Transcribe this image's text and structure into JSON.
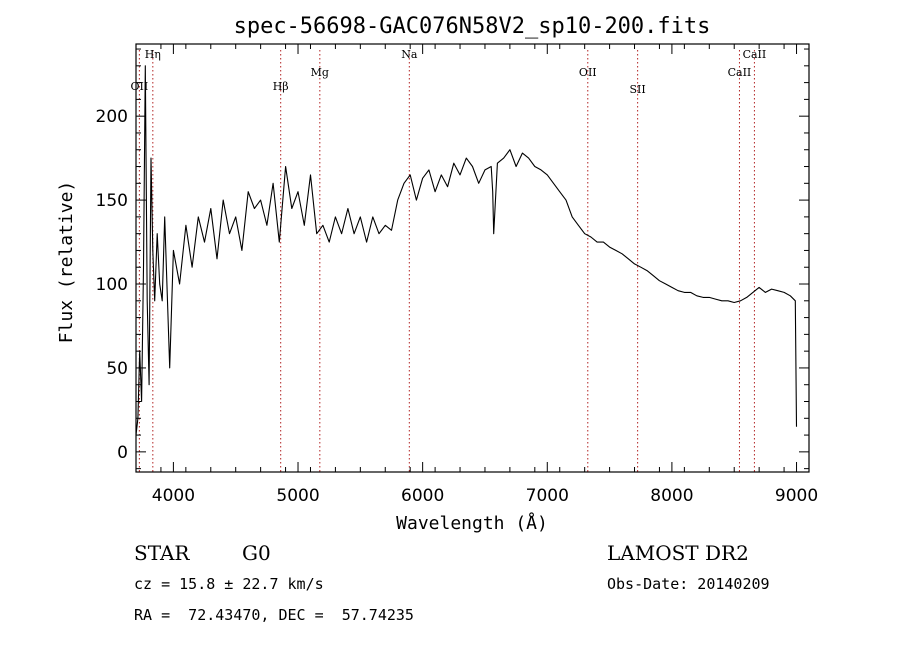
{
  "chart_data": {
    "type": "line",
    "title": "spec-56698-GAC076N58V2_sp10-200.fits",
    "xlabel": "Wavelength (Å)",
    "ylabel": "Flux (relative)",
    "xlim": [
      3700,
      9100
    ],
    "ylim": [
      -12,
      243
    ],
    "xticks": [
      4000,
      5000,
      6000,
      7000,
      8000,
      9000
    ],
    "yticks": [
      0,
      50,
      100,
      150,
      200
    ],
    "line_color": "#000000",
    "series": [
      {
        "x": [
          3700,
          3715,
          3730,
          3745,
          3760,
          3775,
          3790,
          3805,
          3820,
          3835,
          3850,
          3870,
          3890,
          3910,
          3930,
          3950,
          3970,
          4000,
          4050,
          4100,
          4150,
          4200,
          4250,
          4300,
          4350,
          4400,
          4450,
          4500,
          4550,
          4600,
          4650,
          4700,
          4750,
          4800,
          4850,
          4900,
          4950,
          5000,
          5050,
          5100,
          5150,
          5200,
          5250,
          5300,
          5350,
          5400,
          5450,
          5500,
          5550,
          5600,
          5650,
          5700,
          5750,
          5800,
          5850,
          5900,
          5950,
          6000,
          6050,
          6100,
          6150,
          6200,
          6250,
          6300,
          6350,
          6400,
          6450,
          6500,
          6550,
          6562,
          6570,
          6600,
          6650,
          6700,
          6750,
          6800,
          6850,
          6900,
          6950,
          7000,
          7050,
          7100,
          7150,
          7200,
          7250,
          7300,
          7350,
          7400,
          7450,
          7500,
          7550,
          7600,
          7650,
          7700,
          7750,
          7800,
          7850,
          7900,
          7950,
          8000,
          8050,
          8100,
          8150,
          8200,
          8250,
          8300,
          8350,
          8400,
          8450,
          8500,
          8550,
          8600,
          8650,
          8700,
          8750,
          8800,
          8850,
          8900,
          8950,
          8990,
          9000
        ],
        "values": [
          10,
          20,
          60,
          30,
          110,
          230,
          90,
          40,
          175,
          120,
          90,
          130,
          100,
          90,
          140,
          95,
          50,
          120,
          100,
          135,
          110,
          140,
          125,
          145,
          115,
          150,
          130,
          140,
          120,
          155,
          145,
          150,
          135,
          160,
          125,
          170,
          145,
          155,
          135,
          165,
          130,
          135,
          125,
          140,
          130,
          145,
          130,
          140,
          125,
          140,
          130,
          135,
          132,
          150,
          160,
          165,
          150,
          163,
          168,
          155,
          165,
          158,
          172,
          165,
          175,
          170,
          160,
          168,
          170,
          155,
          130,
          172,
          175,
          180,
          170,
          178,
          175,
          170,
          168,
          165,
          160,
          155,
          150,
          140,
          135,
          130,
          128,
          125,
          125,
          122,
          120,
          118,
          115,
          112,
          110,
          108,
          105,
          102,
          100,
          98,
          96,
          95,
          95,
          93,
          92,
          92,
          91,
          90,
          90,
          89,
          90,
          92,
          95,
          98,
          95,
          97,
          96,
          95,
          93,
          90,
          15
        ]
      }
    ],
    "spectral_lines": [
      {
        "label": "OII",
        "wavelength": 3727
      },
      {
        "label": "Hη",
        "wavelength": 3835
      },
      {
        "label": "Hβ",
        "wavelength": 4861
      },
      {
        "label": "Mg",
        "wavelength": 5175
      },
      {
        "label": "Na",
        "wavelength": 5893
      },
      {
        "label": "OII",
        "wavelength": 7325
      },
      {
        "label": "SII",
        "wavelength": 7725
      },
      {
        "label": "CaII",
        "wavelength": 8542
      },
      {
        "label": "CaII",
        "wavelength": 8662
      }
    ],
    "spectral_line_color": "#b22222"
  },
  "info": {
    "object_type": "STAR",
    "subclass": "G0",
    "survey": "LAMOST DR2",
    "cz": "cz = 15.8 ± 22.7 km/s",
    "obs_date": "Obs-Date: 20140209",
    "coords": "RA =  72.43470, DEC =  57.74235"
  }
}
